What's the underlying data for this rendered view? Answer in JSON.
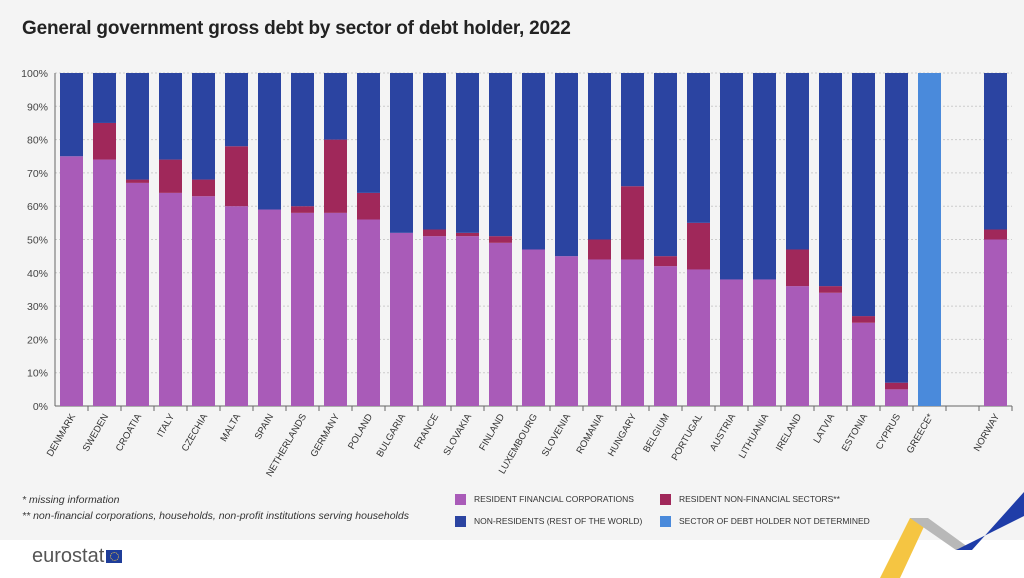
{
  "title": "General government gross debt by sector of debt holder, 2022",
  "notes": [
    "* missing information",
    "** non-financial corporations, households, non-profit institutions serving households"
  ],
  "legend": [
    {
      "label": "Resident financial corporations",
      "color": "#a95bb8"
    },
    {
      "label": "Resident non-financial sectors**",
      "color": "#a0285a"
    },
    {
      "label": "Non-residents (rest of the world)",
      "color": "#2b44a1"
    },
    {
      "label": "Sector of debt holder not determined",
      "color": "#4a8adb"
    }
  ],
  "logo": "eurostat",
  "chart_data": {
    "type": "bar",
    "stacked": true,
    "title": "General government gross debt by sector of debt holder, 2022",
    "xlabel": "",
    "ylabel": "",
    "ylim": [
      0,
      100
    ],
    "yticks": [
      "0%",
      "10%",
      "20%",
      "30%",
      "40%",
      "50%",
      "60%",
      "70%",
      "80%",
      "90%",
      "100%"
    ],
    "grid": true,
    "legend_position": "bottom",
    "categories": [
      "DENMARK",
      "SWEDEN",
      "CROATIA",
      "ITALY",
      "CZECHIA",
      "MALTA",
      "SPAIN",
      "NETHERLANDS",
      "GERMANY",
      "POLAND",
      "BULGARIA",
      "FRANCE",
      "SLOVAKIA",
      "FINLAND",
      "LUXEMBOURG",
      "SLOVENIA",
      "ROMANIA",
      "HUNGARY",
      "BELGIUM",
      "PORTUGAL",
      "AUSTRIA",
      "LITHUANIA",
      "IRELAND",
      "LATVIA",
      "ESTONIA",
      "CYPRUS",
      "GREECE*",
      "",
      "NORWAY"
    ],
    "series": [
      {
        "name": "Resident financial corporations",
        "color": "#a95bb8",
        "values": [
          75,
          74,
          67,
          64,
          63,
          60,
          59,
          58,
          58,
          56,
          52,
          51,
          51,
          49,
          47,
          45,
          44,
          44,
          42,
          41,
          38,
          38,
          36,
          34,
          25,
          5,
          0,
          0,
          50
        ]
      },
      {
        "name": "Resident non-financial sectors**",
        "color": "#a0285a",
        "values": [
          0,
          11,
          1,
          10,
          5,
          18,
          0,
          2,
          22,
          8,
          0,
          2,
          1,
          2,
          0,
          0,
          6,
          22,
          3,
          14,
          0,
          0,
          11,
          2,
          2,
          2,
          0,
          0,
          3
        ]
      },
      {
        "name": "Non-residents (rest of the world)",
        "color": "#2b44a1",
        "values": [
          25,
          15,
          32,
          26,
          32,
          22,
          41,
          40,
          20,
          36,
          48,
          47,
          48,
          49,
          53,
          55,
          50,
          34,
          55,
          45,
          62,
          62,
          53,
          64,
          73,
          93,
          0,
          0,
          47
        ]
      },
      {
        "name": "Sector of debt holder not determined",
        "color": "#4a8adb",
        "values": [
          0,
          0,
          0,
          0,
          0,
          0,
          0,
          0,
          0,
          0,
          0,
          0,
          0,
          0,
          0,
          0,
          0,
          0,
          0,
          0,
          0,
          0,
          0,
          0,
          0,
          0,
          100,
          0,
          0
        ]
      }
    ]
  }
}
